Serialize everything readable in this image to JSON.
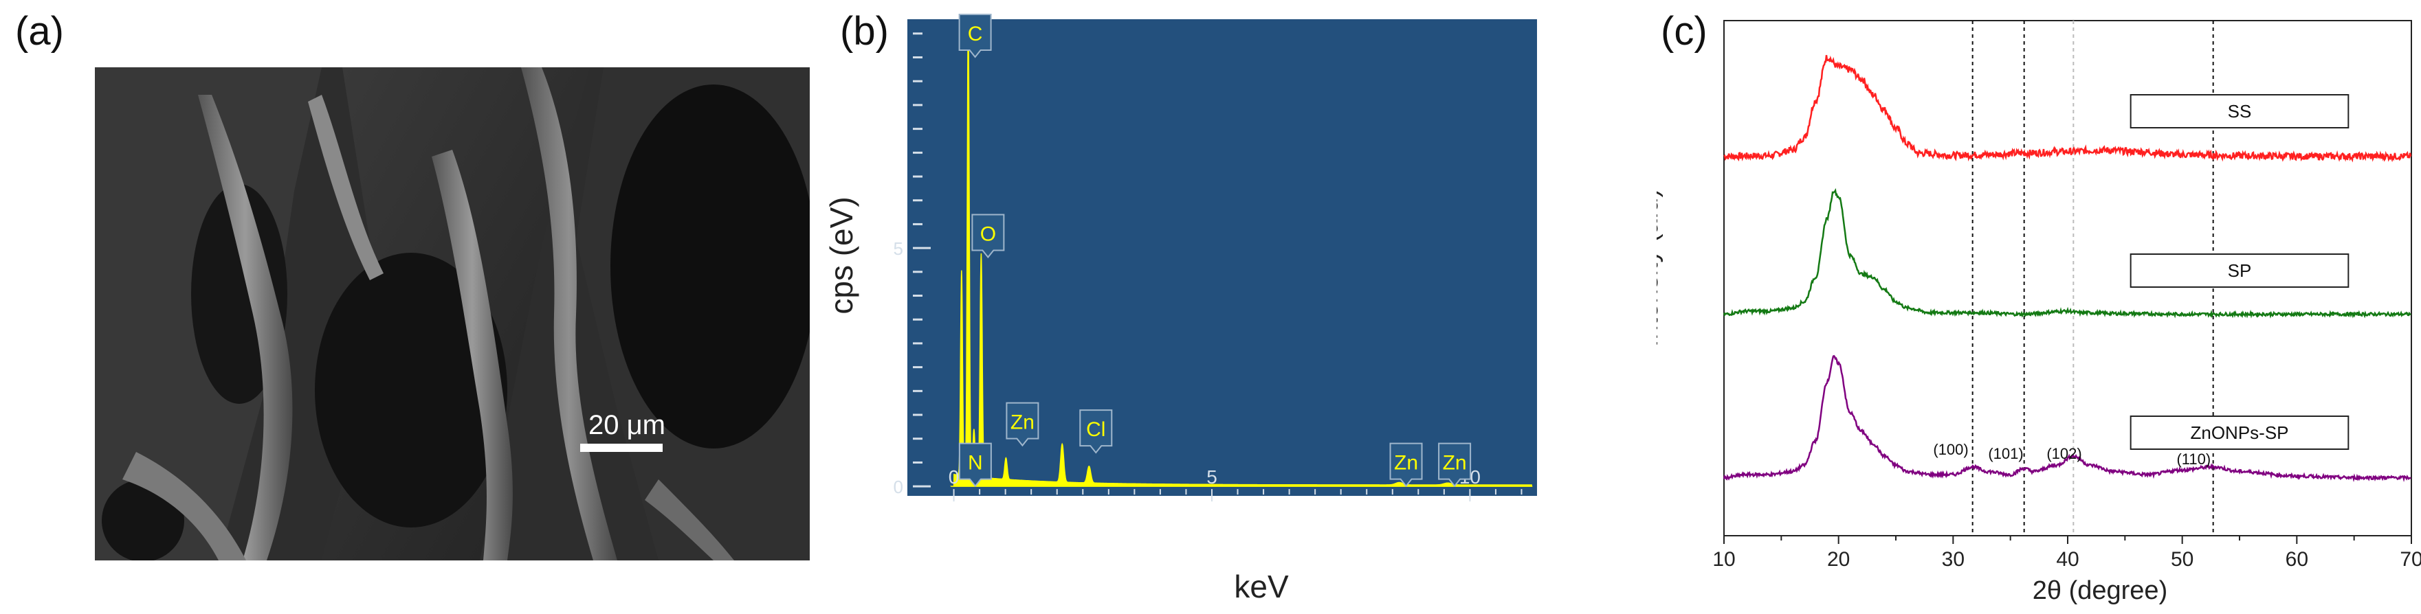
{
  "panels": {
    "a": {
      "label": "(a)",
      "scale_bar": "20 μm"
    },
    "b": {
      "label": "(b)",
      "colors": {
        "background": "#23507d",
        "spectrum": "#ffff00",
        "axis_text": "#d5dfe9"
      }
    },
    "c": {
      "label": "(c)",
      "colors": {
        "SS": "#ff2020",
        "SP": "#147a14",
        "ZnONPs-SP": "#800080"
      }
    }
  },
  "chart_data": [
    {
      "type": "line",
      "panel": "b",
      "xlabel": "keV",
      "ylabel": "cps (eV)",
      "xlim": [
        -0.9,
        11.3
      ],
      "ylim": [
        -0.2,
        9.8
      ],
      "xticks": [
        0,
        5,
        10
      ],
      "yticks": [
        0,
        5
      ],
      "peaks": [
        {
          "label": "C",
          "energy": 0.28,
          "height": 9.7
        },
        {
          "label": "N",
          "energy": 0.39,
          "height": 1.0
        },
        {
          "label": "O",
          "energy": 0.53,
          "height": 4.7
        },
        {
          "label": "Zn",
          "energy": 1.01,
          "height": 0.45
        },
        {
          "label": "Cl",
          "energy": 2.62,
          "height": 0.35
        },
        {
          "label": "Zn",
          "energy": 8.63,
          "height": 0.05
        },
        {
          "label": "Zn",
          "energy": 9.57,
          "height": 0.04
        }
      ],
      "unlabeled_peaks": [
        {
          "energy": 0.15,
          "height": 4.3
        },
        {
          "energy": 2.1,
          "height": 0.8
        }
      ]
    },
    {
      "type": "line",
      "panel": "c",
      "xlabel": "2θ (degree)",
      "ylabel": "Intensity (a.u)",
      "xlim": [
        10,
        70
      ],
      "xticks": [
        10,
        20,
        30,
        40,
        50,
        60,
        70
      ],
      "grid": false,
      "reference_lines": [
        {
          "x": 31.7,
          "label": "(100)"
        },
        {
          "x": 36.2,
          "label": "(101)"
        },
        {
          "x": 40.5,
          "label": "(102)"
        },
        {
          "x": 52.7,
          "label": "(110)"
        }
      ],
      "series": [
        {
          "name": "SS",
          "points": [
            [
              10,
              0.1
            ],
            [
              14,
              0.12
            ],
            [
              16,
              0.3
            ],
            [
              17,
              0.7
            ],
            [
              18,
              1.9
            ],
            [
              19,
              3.3
            ],
            [
              20,
              3.0
            ],
            [
              21,
              2.9
            ],
            [
              22,
              2.6
            ],
            [
              23,
              2.1
            ],
            [
              24,
              1.6
            ],
            [
              25,
              1.0
            ],
            [
              26,
              0.5
            ],
            [
              27,
              0.2
            ],
            [
              30,
              0.13
            ],
            [
              33,
              0.15
            ],
            [
              36,
              0.2
            ],
            [
              40,
              0.25
            ],
            [
              43,
              0.3
            ],
            [
              46,
              0.25
            ],
            [
              50,
              0.15
            ],
            [
              55,
              0.12
            ],
            [
              60,
              0.1
            ],
            [
              70,
              0.1
            ]
          ]
        },
        {
          "name": "SP",
          "points": [
            [
              10,
              0.1
            ],
            [
              12,
              0.2
            ],
            [
              14,
              0.2
            ],
            [
              16,
              0.3
            ],
            [
              17,
              0.5
            ],
            [
              18,
              1.3
            ],
            [
              19,
              3.2
            ],
            [
              19.6,
              4.1
            ],
            [
              20,
              3.9
            ],
            [
              21,
              2.0
            ],
            [
              22,
              1.4
            ],
            [
              23,
              1.3
            ],
            [
              24,
              0.9
            ],
            [
              25,
              0.5
            ],
            [
              26,
              0.3
            ],
            [
              28,
              0.15
            ],
            [
              32,
              0.15
            ],
            [
              36,
              0.1
            ],
            [
              40,
              0.2
            ],
            [
              41,
              0.15
            ],
            [
              45,
              0.12
            ],
            [
              50,
              0.1
            ],
            [
              60,
              0.1
            ],
            [
              70,
              0.1
            ]
          ]
        },
        {
          "name": "ZnONPs-SP",
          "points": [
            [
              10,
              0.1
            ],
            [
              12,
              0.2
            ],
            [
              14,
              0.2
            ],
            [
              16,
              0.3
            ],
            [
              17,
              0.5
            ],
            [
              18,
              1.3
            ],
            [
              19,
              3.2
            ],
            [
              19.6,
              4.0
            ],
            [
              20,
              3.8
            ],
            [
              21,
              2.2
            ],
            [
              22,
              1.6
            ],
            [
              23,
              1.2
            ],
            [
              24,
              0.8
            ],
            [
              25,
              0.5
            ],
            [
              26,
              0.3
            ],
            [
              28,
              0.2
            ],
            [
              30,
              0.2
            ],
            [
              31.7,
              0.45
            ],
            [
              33,
              0.3
            ],
            [
              35,
              0.2
            ],
            [
              36.2,
              0.4
            ],
            [
              37,
              0.3
            ],
            [
              39,
              0.5
            ],
            [
              40.5,
              0.8
            ],
            [
              42,
              0.5
            ],
            [
              44,
              0.3
            ],
            [
              47,
              0.2
            ],
            [
              50,
              0.35
            ],
            [
              52.7,
              0.45
            ],
            [
              55,
              0.3
            ],
            [
              60,
              0.15
            ],
            [
              65,
              0.1
            ],
            [
              70,
              0.1
            ]
          ]
        }
      ]
    }
  ]
}
